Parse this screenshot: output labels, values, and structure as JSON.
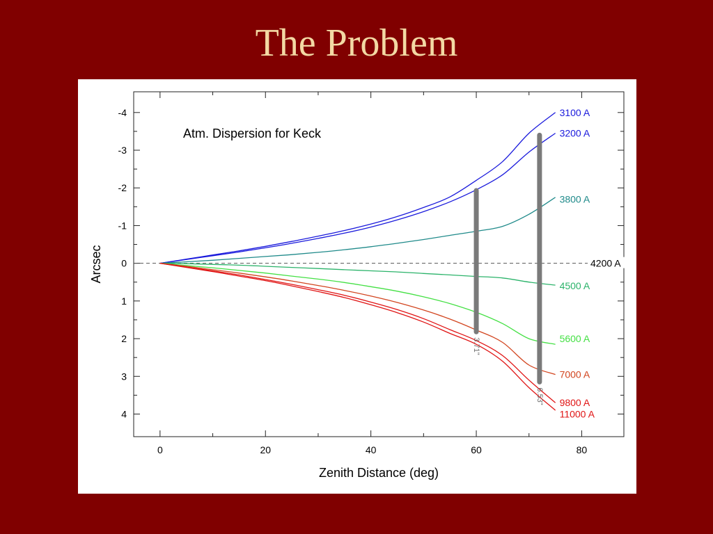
{
  "slide": {
    "title": "The Problem"
  },
  "chart_data": {
    "type": "line",
    "title": "Atm. Dispersion for Keck",
    "xlabel": "Zenith Distance (deg)",
    "ylabel": "Arcsec",
    "xlim": [
      -5,
      88
    ],
    "ylim": [
      4.6,
      -4.55
    ],
    "y_inverted": true,
    "xticks": [
      0,
      20,
      40,
      60,
      80
    ],
    "yticks": [
      -4,
      -3,
      -2,
      -1,
      0,
      1,
      2,
      3,
      4
    ],
    "grid": false,
    "reference_line": {
      "y": 0,
      "style": "dashed",
      "color": "#555555"
    },
    "x": [
      0,
      5,
      10,
      15,
      20,
      25,
      30,
      35,
      40,
      45,
      50,
      55,
      60,
      65,
      70,
      75
    ],
    "series": [
      {
        "name": "3100 A",
        "color": "#1a1adc",
        "values": [
          0,
          -0.11,
          -0.22,
          -0.33,
          -0.45,
          -0.58,
          -0.72,
          -0.87,
          -1.04,
          -1.24,
          -1.48,
          -1.76,
          -2.2,
          -2.7,
          -3.45,
          -4.0
        ]
      },
      {
        "name": "3200 A",
        "color": "#1a1adc",
        "values": [
          0,
          -0.1,
          -0.2,
          -0.3,
          -0.41,
          -0.53,
          -0.66,
          -0.8,
          -0.96,
          -1.15,
          -1.37,
          -1.63,
          -1.95,
          -2.35,
          -2.95,
          -3.45
        ]
      },
      {
        "name": "3800 A",
        "color": "#1f8a8a",
        "values": [
          0,
          -0.04,
          -0.08,
          -0.13,
          -0.18,
          -0.23,
          -0.29,
          -0.36,
          -0.44,
          -0.53,
          -0.63,
          -0.74,
          -0.85,
          -0.98,
          -1.3,
          -1.75
        ]
      },
      {
        "name": "4200 A",
        "color": "#000000",
        "values": [
          0,
          0,
          0,
          0,
          0,
          0,
          0,
          0,
          0,
          0,
          0,
          0,
          0,
          0,
          0,
          0
        ]
      },
      {
        "name": "4500 A",
        "color": "#2bb36a",
        "values": [
          0,
          0.01,
          0.03,
          0.05,
          0.08,
          0.11,
          0.14,
          0.17,
          0.2,
          0.23,
          0.27,
          0.31,
          0.35,
          0.39,
          0.5,
          0.58
        ]
      },
      {
        "name": "5600 A",
        "color": "#44e044",
        "values": [
          0,
          0.06,
          0.12,
          0.19,
          0.26,
          0.34,
          0.42,
          0.51,
          0.62,
          0.74,
          0.89,
          1.07,
          1.3,
          1.6,
          2.0,
          2.15
        ]
      },
      {
        "name": "7000 A",
        "color": "#d2451f",
        "values": [
          0,
          0.08,
          0.17,
          0.26,
          0.36,
          0.47,
          0.59,
          0.72,
          0.87,
          1.04,
          1.24,
          1.48,
          1.77,
          2.1,
          2.7,
          2.95
        ]
      },
      {
        "name": "9800 A",
        "color": "#e01414",
        "values": [
          0,
          0.1,
          0.2,
          0.31,
          0.43,
          0.56,
          0.7,
          0.85,
          1.03,
          1.23,
          1.47,
          1.76,
          2.05,
          2.45,
          3.1,
          3.7
        ]
      },
      {
        "name": "11000 A",
        "color": "#e01414",
        "values": [
          0,
          0.11,
          0.22,
          0.34,
          0.46,
          0.6,
          0.75,
          0.91,
          1.1,
          1.31,
          1.56,
          1.86,
          2.15,
          2.6,
          3.3,
          3.9
        ]
      }
    ],
    "series_label_y": [
      -4.0,
      -3.45,
      -1.7,
      0,
      0.6,
      2.0,
      2.95,
      3.7,
      4.0
    ],
    "highlight_bars": [
      {
        "x": 60,
        "y_top": -1.93,
        "y_bottom": 1.82,
        "label": "3.71\"",
        "color": "#7a7a7a"
      },
      {
        "x": 72,
        "y_top": -3.4,
        "y_bottom": 3.15,
        "label": "6.53\"",
        "color": "#7a7a7a"
      }
    ]
  }
}
